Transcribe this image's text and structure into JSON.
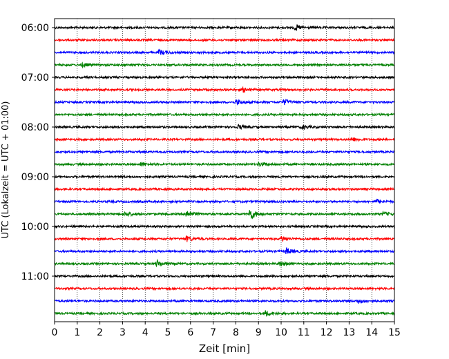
{
  "chart_data": {
    "type": "line",
    "title": "",
    "xlabel": "Zeit  [min]",
    "ylabel": "UTC (Lokalzeit = UTC + 01:00)",
    "xlim": [
      0,
      15
    ],
    "x_ticks": [
      0,
      1,
      2,
      3,
      4,
      5,
      6,
      7,
      8,
      9,
      10,
      11,
      12,
      13,
      14,
      15
    ],
    "x_tick_labels": [
      "0",
      "1",
      "2",
      "3",
      "4",
      "5",
      "6",
      "7",
      "8",
      "9",
      "10",
      "11",
      "12",
      "13",
      "14",
      "15"
    ],
    "y_tick_labels": [
      "06:00",
      "07:00",
      "08:00",
      "09:00",
      "10:00",
      "11:00"
    ],
    "y_tick_rows": [
      0,
      4,
      8,
      12,
      16,
      20
    ],
    "grid": "vertical-dotted",
    "trace_colors": [
      "#000000",
      "#ff0000",
      "#0000ff",
      "#008000"
    ],
    "traces": [
      {
        "start": "06:00",
        "color": "#000000",
        "events": [
          {
            "t": 10.6,
            "amp": 4
          }
        ]
      },
      {
        "start": "06:15",
        "color": "#ff0000",
        "events": []
      },
      {
        "start": "06:30",
        "color": "#0000ff",
        "events": [
          {
            "t": 4.6,
            "amp": 4
          }
        ]
      },
      {
        "start": "06:45",
        "color": "#008000",
        "events": [
          {
            "t": 1.2,
            "amp": 3
          }
        ]
      },
      {
        "start": "07:00",
        "color": "#000000",
        "events": []
      },
      {
        "start": "07:15",
        "color": "#ff0000",
        "events": [
          {
            "t": 8.3,
            "amp": 3
          }
        ]
      },
      {
        "start": "07:30",
        "color": "#0000ff",
        "events": [
          {
            "t": 8.0,
            "amp": 4
          },
          {
            "t": 10.1,
            "amp": 4
          }
        ]
      },
      {
        "start": "07:45",
        "color": "#008000",
        "events": []
      },
      {
        "start": "08:00",
        "color": "#000000",
        "events": [
          {
            "t": 8.1,
            "amp": 3
          },
          {
            "t": 10.9,
            "amp": 3
          }
        ]
      },
      {
        "start": "08:15",
        "color": "#ff0000",
        "events": [
          {
            "t": 13.1,
            "amp": 3
          }
        ]
      },
      {
        "start": "08:30",
        "color": "#0000ff",
        "events": []
      },
      {
        "start": "08:45",
        "color": "#008000",
        "events": [
          {
            "t": 3.8,
            "amp": 3
          },
          {
            "t": 9.0,
            "amp": 3
          }
        ]
      },
      {
        "start": "09:00",
        "color": "#000000",
        "events": []
      },
      {
        "start": "09:15",
        "color": "#ff0000",
        "events": []
      },
      {
        "start": "09:30",
        "color": "#0000ff",
        "events": [
          {
            "t": 14.2,
            "amp": 3
          }
        ]
      },
      {
        "start": "09:45",
        "color": "#008000",
        "events": [
          {
            "t": 3.1,
            "amp": 4
          },
          {
            "t": 5.8,
            "amp": 6
          },
          {
            "t": 8.6,
            "amp": 9
          },
          {
            "t": 14.5,
            "amp": 3
          }
        ]
      },
      {
        "start": "10:00",
        "color": "#000000",
        "events": []
      },
      {
        "start": "10:15",
        "color": "#ff0000",
        "events": [
          {
            "t": 5.8,
            "amp": 4
          },
          {
            "t": 10.0,
            "amp": 4
          }
        ]
      },
      {
        "start": "10:30",
        "color": "#0000ff",
        "events": [
          {
            "t": 10.2,
            "amp": 5
          }
        ]
      },
      {
        "start": "10:45",
        "color": "#008000",
        "events": [
          {
            "t": 4.5,
            "amp": 5
          },
          {
            "t": 9.9,
            "amp": 4
          }
        ]
      },
      {
        "start": "11:00",
        "color": "#000000",
        "events": []
      },
      {
        "start": "11:15",
        "color": "#ff0000",
        "events": []
      },
      {
        "start": "11:30",
        "color": "#0000ff",
        "events": [
          {
            "t": 13.4,
            "amp": 3
          }
        ]
      },
      {
        "start": "11:45",
        "color": "#008000",
        "events": [
          {
            "t": 9.3,
            "amp": 4
          }
        ]
      }
    ]
  }
}
